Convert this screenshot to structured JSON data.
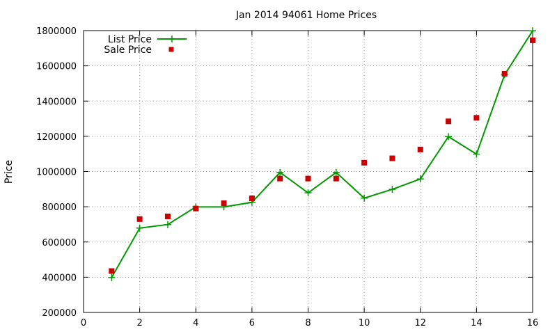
{
  "chart_data": {
    "type": "line",
    "title": "Jan 2014 94061 Home Prices",
    "xlabel": "",
    "ylabel": "Price",
    "xlim": [
      0,
      16
    ],
    "ylim": [
      200000,
      1800000
    ],
    "xticks": [
      0,
      2,
      4,
      6,
      8,
      10,
      12,
      14,
      16
    ],
    "yticks": [
      200000,
      400000,
      600000,
      800000,
      1000000,
      1200000,
      1400000,
      1600000,
      1800000
    ],
    "xtick_labels": [
      "0",
      "2",
      "4",
      "6",
      "8",
      "10",
      "12",
      "14",
      "16"
    ],
    "ytick_labels": [
      "200000",
      "400000",
      "600000",
      "800000",
      "1000000",
      "1200000",
      "1400000",
      "1600000",
      "1800000"
    ],
    "grid": true,
    "legend_position": "top-left",
    "series": [
      {
        "name": "List Price",
        "style": "linespoints",
        "marker": "plus",
        "color": "#009900",
        "x": [
          1,
          2,
          3,
          4,
          5,
          6,
          7,
          8,
          9,
          10,
          11,
          12,
          13,
          14,
          15,
          16
        ],
        "y": [
          398000,
          679000,
          699000,
          799000,
          799000,
          825000,
          995000,
          879000,
          995000,
          849000,
          899000,
          958000,
          1198000,
          1099000,
          1549000,
          1799000
        ]
      },
      {
        "name": "Sale Price",
        "style": "points",
        "marker": "square",
        "color": "#cc0000",
        "x": [
          1,
          2,
          3,
          4,
          5,
          6,
          7,
          8,
          9,
          10,
          11,
          12,
          13,
          14,
          15,
          16
        ],
        "y": [
          435000,
          730000,
          745000,
          790000,
          820000,
          848000,
          960000,
          960000,
          960000,
          1050000,
          1075000,
          1125000,
          1285000,
          1305000,
          1555000,
          1745000
        ]
      }
    ]
  }
}
